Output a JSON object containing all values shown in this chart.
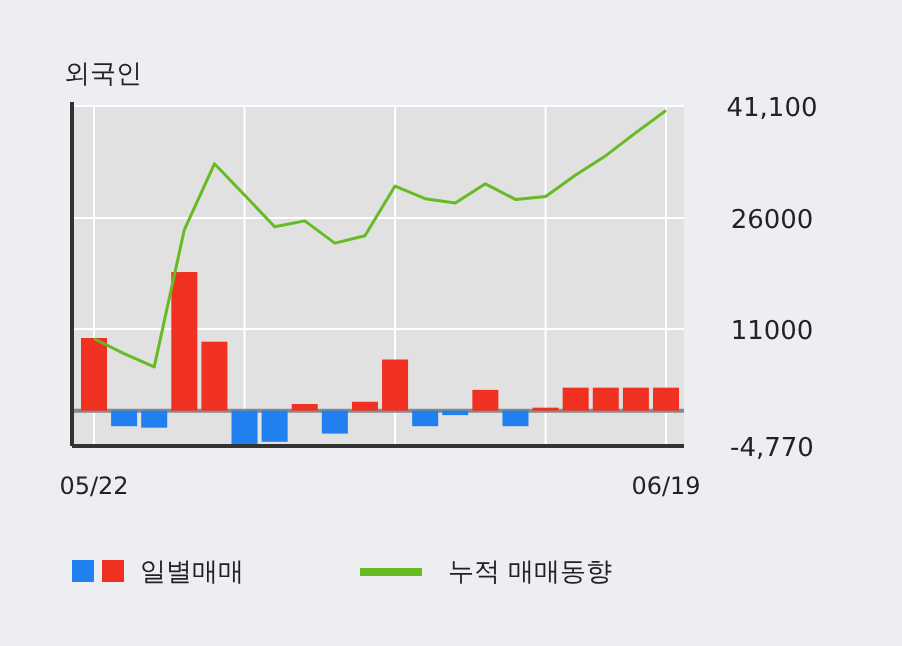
{
  "chart_data": {
    "type": "bar",
    "title": "외국인",
    "categories": [
      "05/22",
      null,
      null,
      null,
      null,
      null,
      null,
      null,
      null,
      null,
      null,
      null,
      null,
      null,
      null,
      null,
      null,
      null,
      null,
      "06/19"
    ],
    "ylim": [
      -4770,
      41100
    ],
    "yticks": [
      {
        "value": 41100,
        "label": "41,100"
      },
      26000,
      11000,
      {
        "value": -4770,
        "label": "-4,770"
      }
    ],
    "grid": true,
    "legend": "bottom",
    "series": [
      {
        "name": "일별매매",
        "colors": [
          "#f03020",
          "#2080f0",
          "#2080f0",
          "#f03020",
          "#f03020",
          "#2080f0",
          "#2080f0",
          "#f03020",
          "#2080f0",
          "#f03020",
          "#f03020",
          "#2080f0",
          "#2080f0",
          "#f03020",
          "#2080f0",
          "#f03020",
          "#f03020",
          "#f03020",
          "#f03020",
          "#f03020"
        ],
        "values": [
          9800,
          -2100,
          -2300,
          18700,
          9300,
          -4700,
          -4200,
          900,
          -3100,
          1200,
          6900,
          -2100,
          -600,
          2800,
          -2100,
          400,
          3100,
          3100,
          3100,
          3100
        ]
      },
      {
        "name": "누적 매매동향",
        "type": "line",
        "color": "#66bb22",
        "values": [
          9700,
          7700,
          5900,
          24400,
          33300,
          29100,
          24800,
          25600,
          22600,
          23600,
          30300,
          28600,
          28000,
          30600,
          28500,
          28900,
          31800,
          34400,
          37500,
          40500
        ]
      }
    ]
  }
}
